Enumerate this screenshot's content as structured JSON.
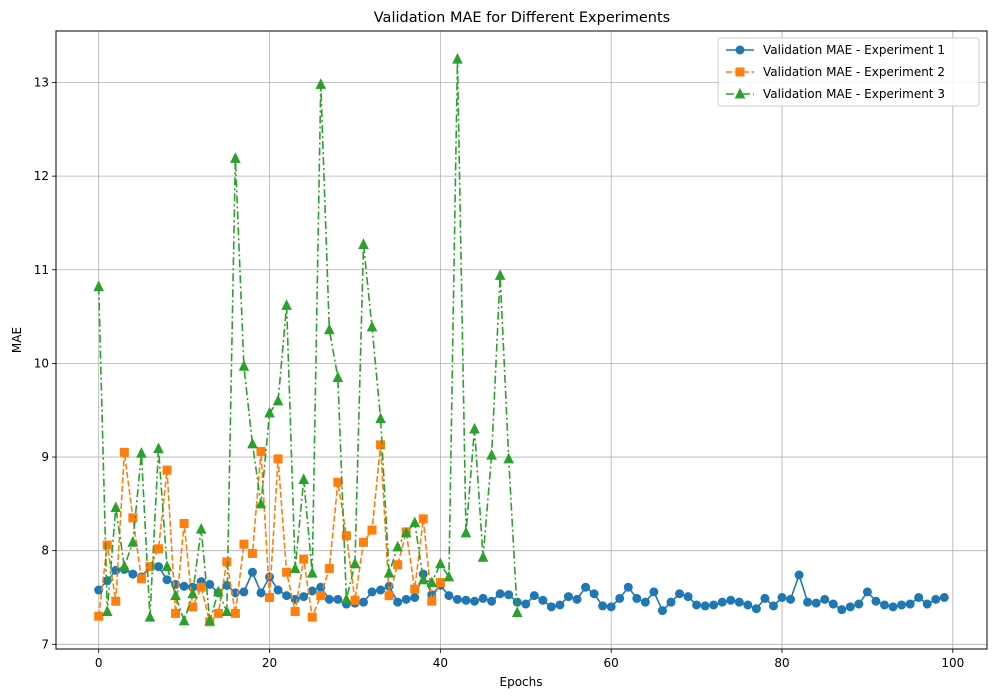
{
  "chart_data": {
    "type": "line",
    "title": "Validation MAE for Different Experiments",
    "xlabel": "Epochs",
    "ylabel": "MAE",
    "xlim": [
      -5,
      104
    ],
    "ylim": [
      6.95,
      13.55
    ],
    "xticks": [
      0,
      20,
      40,
      60,
      80,
      100
    ],
    "yticks": [
      7,
      8,
      9,
      10,
      11,
      12,
      13
    ],
    "grid": true,
    "legend_position": "top-right",
    "series": [
      {
        "name": "Validation MAE - Experiment 1",
        "color": "#1f77b4",
        "linestyle": "solid",
        "marker": "circle",
        "x": [
          0,
          1,
          2,
          3,
          4,
          5,
          6,
          7,
          8,
          9,
          10,
          11,
          12,
          13,
          14,
          15,
          16,
          17,
          18,
          19,
          20,
          21,
          22,
          23,
          24,
          25,
          26,
          27,
          28,
          29,
          30,
          31,
          32,
          33,
          34,
          35,
          36,
          37,
          38,
          39,
          40,
          41,
          42,
          43,
          44,
          45,
          46,
          47,
          48,
          49,
          50,
          51,
          52,
          53,
          54,
          55,
          56,
          57,
          58,
          59,
          60,
          61,
          62,
          63,
          64,
          65,
          66,
          67,
          68,
          69,
          70,
          71,
          72,
          73,
          74,
          75,
          76,
          77,
          78,
          79,
          80,
          81,
          82,
          83,
          84,
          85,
          86,
          87,
          88,
          89,
          90,
          91,
          92,
          93,
          94,
          95,
          96,
          97,
          98,
          99
        ],
        "y": [
          7.58,
          7.68,
          7.79,
          7.8,
          7.75,
          7.72,
          7.83,
          7.83,
          7.69,
          7.64,
          7.62,
          7.61,
          7.67,
          7.64,
          7.55,
          7.63,
          7.55,
          7.56,
          7.77,
          7.55,
          7.72,
          7.58,
          7.52,
          7.48,
          7.51,
          7.57,
          7.61,
          7.48,
          7.48,
          7.43,
          7.44,
          7.45,
          7.56,
          7.58,
          7.62,
          7.45,
          7.48,
          7.5,
          7.75,
          7.53,
          7.63,
          7.52,
          7.48,
          7.47,
          7.46,
          7.49,
          7.46,
          7.54,
          7.53,
          7.45,
          7.43,
          7.52,
          7.47,
          7.4,
          7.42,
          7.51,
          7.48,
          7.61,
          7.54,
          7.41,
          7.4,
          7.49,
          7.61,
          7.49,
          7.45,
          7.56,
          7.36,
          7.45,
          7.54,
          7.51,
          7.42,
          7.41,
          7.42,
          7.45,
          7.47,
          7.45,
          7.42,
          7.38,
          7.49,
          7.41,
          7.5,
          7.48,
          7.74,
          7.45,
          7.44,
          7.48,
          7.43,
          7.37,
          7.4,
          7.43,
          7.56,
          7.46,
          7.42,
          7.4,
          7.42,
          7.43,
          7.5,
          7.43,
          7.48,
          7.5
        ]
      },
      {
        "name": "Validation MAE - Experiment 2",
        "color": "#ff7f0e",
        "linestyle": "dashed",
        "marker": "square",
        "x": [
          0,
          1,
          2,
          3,
          4,
          5,
          6,
          7,
          8,
          9,
          10,
          11,
          12,
          13,
          14,
          15,
          16,
          17,
          18,
          19,
          20,
          21,
          22,
          23,
          24,
          25,
          26,
          27,
          28,
          29,
          30,
          31,
          32,
          33,
          34,
          35,
          36,
          37,
          38,
          39,
          40
        ],
        "y": [
          7.3,
          8.06,
          7.46,
          9.05,
          8.35,
          7.7,
          7.83,
          8.02,
          8.86,
          7.33,
          8.29,
          7.4,
          7.61,
          7.24,
          7.33,
          7.88,
          7.33,
          8.07,
          7.97,
          9.06,
          7.5,
          8.98,
          7.77,
          7.35,
          7.91,
          7.29,
          7.52,
          7.81,
          8.73,
          8.16,
          7.47,
          8.09,
          8.22,
          9.13,
          7.52,
          7.85,
          8.2,
          7.59,
          8.34,
          7.46,
          7.66
        ]
      },
      {
        "name": "Validation MAE - Experiment 3",
        "color": "#2ca02c",
        "linestyle": "dashdot",
        "marker": "triangle",
        "x": [
          0,
          1,
          2,
          3,
          4,
          5,
          6,
          7,
          8,
          9,
          10,
          11,
          12,
          13,
          14,
          15,
          16,
          17,
          18,
          19,
          20,
          21,
          22,
          23,
          24,
          25,
          26,
          27,
          28,
          29,
          30,
          31,
          32,
          33,
          34,
          35,
          36,
          37,
          38,
          39,
          40,
          41,
          42,
          43,
          44,
          45,
          46,
          47,
          48,
          49
        ],
        "y": [
          10.82,
          7.35,
          8.46,
          7.83,
          8.09,
          9.04,
          7.29,
          9.09,
          7.83,
          7.52,
          7.25,
          7.54,
          8.23,
          7.25,
          7.56,
          7.35,
          12.19,
          9.97,
          9.14,
          8.5,
          9.47,
          9.6,
          10.62,
          7.81,
          8.76,
          7.76,
          12.98,
          10.36,
          9.85,
          7.48,
          7.86,
          11.27,
          10.39,
          9.41,
          7.76,
          8.04,
          8.19,
          8.3,
          7.69,
          7.66,
          7.86,
          7.72,
          13.25,
          8.19,
          9.3,
          7.93,
          9.02,
          10.94,
          8.98,
          7.34
        ]
      }
    ]
  }
}
